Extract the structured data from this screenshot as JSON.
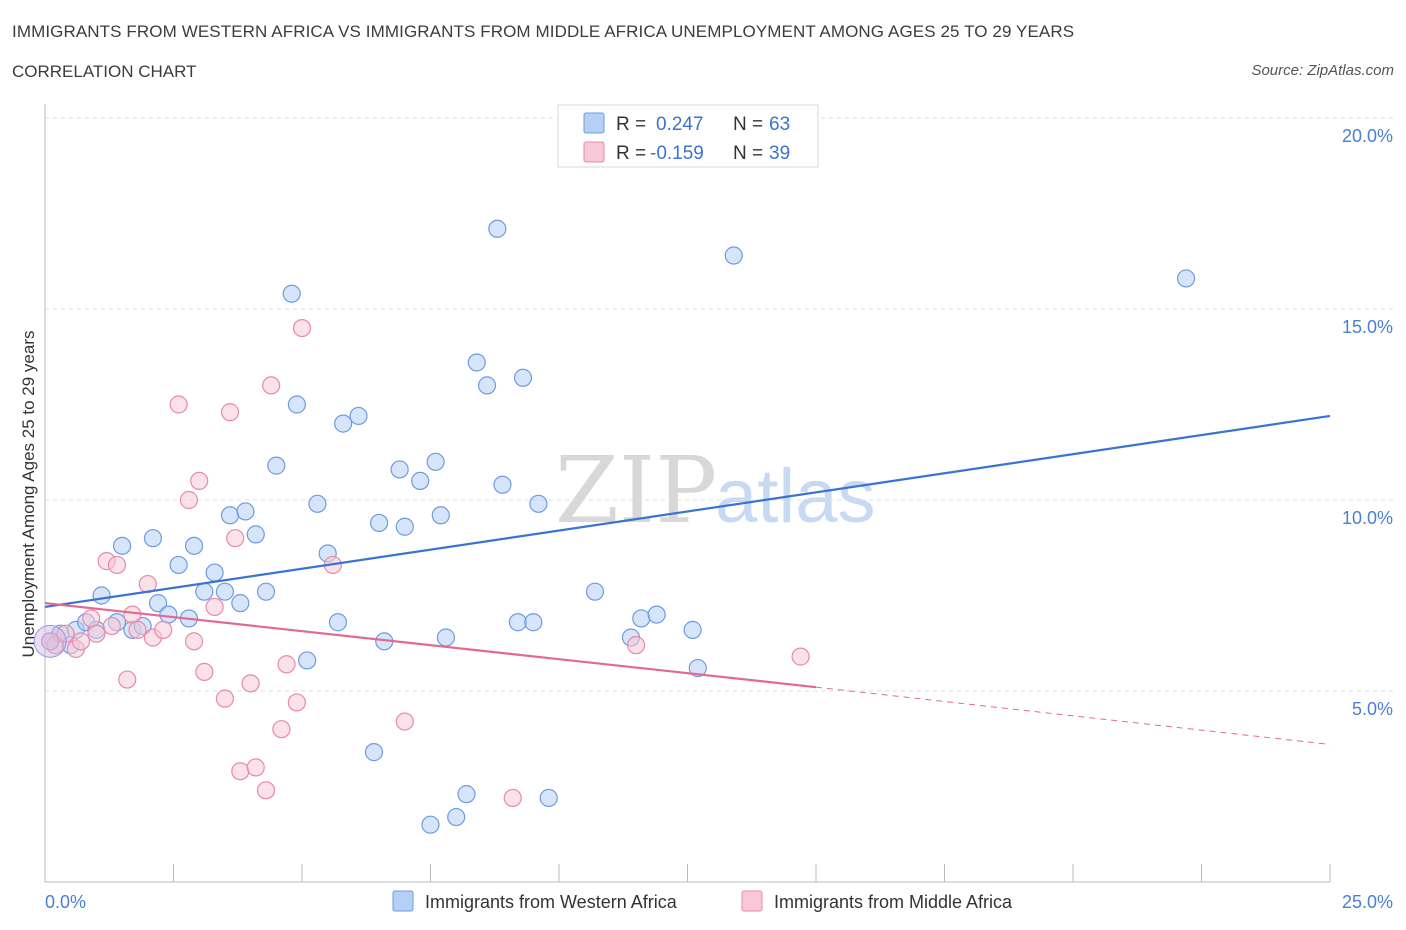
{
  "header": {
    "title": "IMMIGRANTS FROM WESTERN AFRICA VS IMMIGRANTS FROM MIDDLE AFRICA UNEMPLOYMENT AMONG AGES 25 TO 29 YEARS",
    "subtitle": "CORRELATION CHART",
    "source": "Source: ZipAtlas.com"
  },
  "watermark": {
    "zip": "ZIP",
    "atlas": "atlas"
  },
  "legend": {
    "r_label": "R =",
    "n_label": "N =",
    "rows": [
      {
        "r": "0.247",
        "n": "63",
        "color": "#b5d0f5",
        "stroke": "#6f9be0"
      },
      {
        "r": "-0.159",
        "n": "39",
        "color": "#f8c8d6",
        "stroke": "#e88aa8"
      }
    ]
  },
  "chart_data": {
    "type": "scatter",
    "ylabel": "Unemployment Among Ages 25 to 29 years",
    "xlim": [
      0,
      25
    ],
    "ylim": [
      0,
      20
    ],
    "x_tick_labels": [
      "0.0%",
      "25.0%"
    ],
    "y_tick_labels": [
      "5.0%",
      "10.0%",
      "15.0%",
      "20.0%"
    ],
    "y_ticks": [
      5,
      10,
      15,
      20
    ],
    "grid": "horizontal dashed",
    "series": [
      {
        "name": "Immigrants from Western Africa",
        "color": "#b5d0f5",
        "stroke": "#6f9be0",
        "line_color": "#3a73d0",
        "trend": {
          "x0": 0,
          "y0": 7.2,
          "x1": 25,
          "y1": 12.2
        },
        "points": [
          [
            0.1,
            6.3
          ],
          [
            0.3,
            6.5
          ],
          [
            0.5,
            6.2
          ],
          [
            0.6,
            6.6
          ],
          [
            0.8,
            6.8
          ],
          [
            1.0,
            6.6
          ],
          [
            1.1,
            7.5
          ],
          [
            1.4,
            6.8
          ],
          [
            1.5,
            8.8
          ],
          [
            1.7,
            6.6
          ],
          [
            1.9,
            6.7
          ],
          [
            2.1,
            9.0
          ],
          [
            2.2,
            7.3
          ],
          [
            2.4,
            7.0
          ],
          [
            2.6,
            8.3
          ],
          [
            2.8,
            6.9
          ],
          [
            2.9,
            8.8
          ],
          [
            3.1,
            7.6
          ],
          [
            3.3,
            8.1
          ],
          [
            3.5,
            7.6
          ],
          [
            3.6,
            9.6
          ],
          [
            3.8,
            7.3
          ],
          [
            3.9,
            9.7
          ],
          [
            4.1,
            9.1
          ],
          [
            4.3,
            7.6
          ],
          [
            4.5,
            10.9
          ],
          [
            4.8,
            15.4
          ],
          [
            4.9,
            12.5
          ],
          [
            5.1,
            5.8
          ],
          [
            5.3,
            9.9
          ],
          [
            5.5,
            8.6
          ],
          [
            5.7,
            6.8
          ],
          [
            5.8,
            12.0
          ],
          [
            6.1,
            12.2
          ],
          [
            6.4,
            3.4
          ],
          [
            6.5,
            9.4
          ],
          [
            6.6,
            6.3
          ],
          [
            6.9,
            10.8
          ],
          [
            7.0,
            9.3
          ],
          [
            7.3,
            10.5
          ],
          [
            7.5,
            1.5
          ],
          [
            7.6,
            11.0
          ],
          [
            7.7,
            9.6
          ],
          [
            7.8,
            6.4
          ],
          [
            8.0,
            1.7
          ],
          [
            8.2,
            2.3
          ],
          [
            8.4,
            13.6
          ],
          [
            8.6,
            13.0
          ],
          [
            8.8,
            17.1
          ],
          [
            8.9,
            10.4
          ],
          [
            9.2,
            6.8
          ],
          [
            9.3,
            13.2
          ],
          [
            9.5,
            6.8
          ],
          [
            9.6,
            9.9
          ],
          [
            9.8,
            2.2
          ],
          [
            10.7,
            7.6
          ],
          [
            11.4,
            6.4
          ],
          [
            11.6,
            6.9
          ],
          [
            11.9,
            7.0
          ],
          [
            12.6,
            6.6
          ],
          [
            12.7,
            5.6
          ],
          [
            13.4,
            16.4
          ],
          [
            22.2,
            15.8
          ]
        ]
      },
      {
        "name": "Immigrants from Middle Africa",
        "color": "#f8c8d6",
        "stroke": "#e88aa8",
        "line_color": "#e06a92",
        "trend": {
          "x0": 0,
          "y0": 7.3,
          "x1": 15,
          "y1": 5.1
        },
        "trend_dashed_to": {
          "x": 25,
          "y": 3.6
        },
        "points": [
          [
            0.2,
            6.2
          ],
          [
            0.4,
            6.5
          ],
          [
            0.6,
            6.1
          ],
          [
            0.7,
            6.3
          ],
          [
            0.9,
            6.9
          ],
          [
            1.0,
            6.5
          ],
          [
            1.2,
            8.4
          ],
          [
            1.3,
            6.7
          ],
          [
            1.4,
            8.3
          ],
          [
            1.6,
            5.3
          ],
          [
            1.7,
            7.0
          ],
          [
            1.8,
            6.6
          ],
          [
            2.0,
            7.8
          ],
          [
            2.1,
            6.4
          ],
          [
            2.3,
            6.6
          ],
          [
            2.6,
            12.5
          ],
          [
            2.8,
            10.0
          ],
          [
            2.9,
            6.3
          ],
          [
            3.0,
            10.5
          ],
          [
            3.1,
            5.5
          ],
          [
            3.3,
            7.2
          ],
          [
            3.5,
            4.8
          ],
          [
            3.6,
            12.3
          ],
          [
            3.7,
            9.0
          ],
          [
            3.8,
            2.9
          ],
          [
            4.0,
            5.2
          ],
          [
            4.1,
            3.0
          ],
          [
            4.3,
            2.4
          ],
          [
            4.4,
            13.0
          ],
          [
            4.6,
            4.0
          ],
          [
            4.7,
            5.7
          ],
          [
            4.9,
            4.7
          ],
          [
            5.0,
            14.5
          ],
          [
            5.6,
            8.3
          ],
          [
            7.0,
            4.2
          ],
          [
            9.1,
            2.2
          ],
          [
            11.5,
            6.2
          ],
          [
            14.7,
            5.9
          ],
          [
            0.1,
            6.3
          ]
        ]
      }
    ]
  },
  "bottom_legend": [
    {
      "label": "Immigrants from Western Africa"
    },
    {
      "label": "Immigrants from Middle Africa"
    }
  ]
}
